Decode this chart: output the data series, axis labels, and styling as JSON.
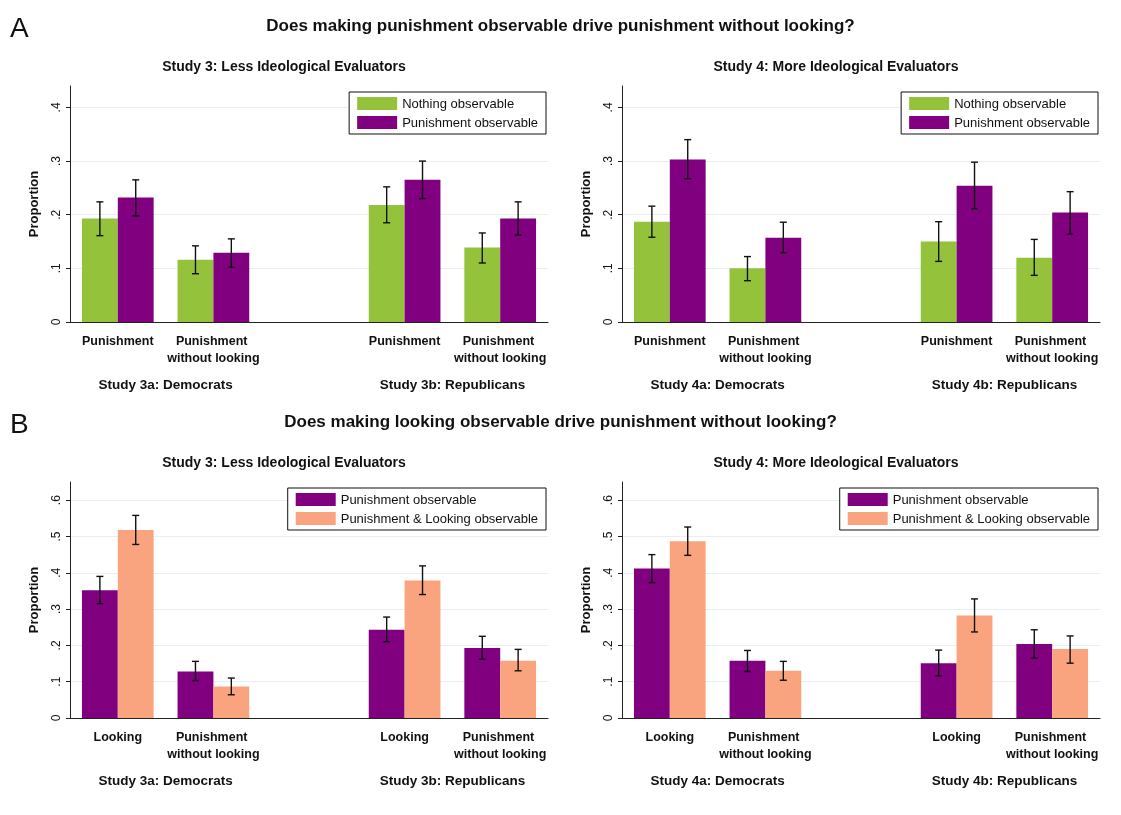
{
  "chart_data": [
    {
      "type": "bar",
      "title": "Study 3: Less Ideological Evaluators",
      "ylabel": "Proportion",
      "categories": [
        "Punishment",
        "Punishment without looking",
        null,
        "Punishment",
        "Punishment without looking"
      ],
      "annotations": [
        "Study 3a: Democrats",
        "Study 3b: Republicans",
        "A",
        "Does making punishment observable drive punishment without looking?"
      ],
      "series": [
        {
          "name": "Nothing observable",
          "color": "#94c23a",
          "values": [
            0.193,
            0.116,
            null,
            0.218,
            0.139
          ],
          "errors": [
            [
              0.161,
              0.224
            ],
            [
              0.09,
              0.142
            ],
            null,
            [
              0.185,
              0.252
            ],
            [
              0.11,
              0.166
            ]
          ]
        },
        {
          "name": "Punishment observable",
          "color": "#800080",
          "values": [
            0.232,
            0.129,
            null,
            0.265,
            0.193
          ],
          "errors": [
            [
              0.198,
              0.265
            ],
            [
              0.102,
              0.155
            ],
            null,
            [
              0.23,
              0.3
            ],
            [
              0.162,
              0.224
            ]
          ]
        }
      ],
      "ylim": [
        0,
        0.44
      ],
      "yticks": [
        {
          "value": 0,
          "label": "0"
        },
        {
          "value": 0.1,
          "label": ".1"
        },
        {
          "value": 0.2,
          "label": ".2"
        },
        {
          "value": 0.3,
          "label": ".3"
        },
        {
          "value": 0.4,
          "label": ".4"
        }
      ],
      "grid": "y",
      "legend": "top right"
    },
    {
      "type": "bar",
      "title": "Study 4: More Ideological Evaluators",
      "ylabel": "Proportion",
      "categories": [
        "Punishment",
        "Punishment without looking",
        null,
        "Punishment",
        "Punishment without looking"
      ],
      "annotations": [
        "Study 4a: Democrats",
        "Study 4b: Republicans"
      ],
      "series": [
        {
          "name": "Nothing observable",
          "color": "#94c23a",
          "values": [
            0.187,
            0.1,
            null,
            0.15,
            0.12
          ],
          "errors": [
            [
              0.158,
              0.216
            ],
            [
              0.077,
              0.122
            ],
            null,
            [
              0.113,
              0.187
            ],
            [
              0.087,
              0.154
            ]
          ]
        },
        {
          "name": "Punishment observable",
          "color": "#800080",
          "values": [
            0.303,
            0.157,
            null,
            0.254,
            0.204
          ],
          "errors": [
            [
              0.267,
              0.34
            ],
            [
              0.129,
              0.186
            ],
            null,
            [
              0.211,
              0.298
            ],
            [
              0.164,
              0.243
            ]
          ]
        }
      ],
      "ylim": [
        0,
        0.44
      ],
      "yticks": [
        {
          "value": 0,
          "label": "0"
        },
        {
          "value": 0.1,
          "label": ".1"
        },
        {
          "value": 0.2,
          "label": ".2"
        },
        {
          "value": 0.3,
          "label": ".3"
        },
        {
          "value": 0.4,
          "label": ".4"
        }
      ],
      "grid": "y",
      "legend": "top right"
    },
    {
      "type": "bar",
      "title": "Study 3: Less Ideological Evaluators",
      "ylabel": "Proportion",
      "categories": [
        "Looking",
        "Punishment without looking",
        null,
        "Looking",
        "Punishment without looking"
      ],
      "annotations": [
        "Study 3a: Democrats",
        "Study 3b: Republicans",
        "B",
        "Does making looking observable drive punishment without looking?"
      ],
      "series": [
        {
          "name": "Punishment observable",
          "color": "#800080",
          "values": [
            0.352,
            0.128,
            null,
            0.243,
            0.193
          ],
          "errors": [
            [
              0.315,
              0.39
            ],
            [
              0.103,
              0.156
            ],
            null,
            [
              0.21,
              0.278
            ],
            [
              0.162,
              0.225
            ]
          ]
        },
        {
          "name": "Punishment & Looking observable",
          "color": "#f9a47e",
          "values": [
            0.518,
            0.087,
            null,
            0.379,
            0.158
          ],
          "errors": [
            [
              0.478,
              0.558
            ],
            [
              0.064,
              0.11
            ],
            null,
            [
              0.34,
              0.419
            ],
            [
              0.13,
              0.189
            ]
          ]
        }
      ],
      "ylim": [
        0,
        0.65
      ],
      "yticks": [
        {
          "value": 0,
          "label": "0"
        },
        {
          "value": 0.1,
          "label": ".1"
        },
        {
          "value": 0.2,
          "label": ".2"
        },
        {
          "value": 0.3,
          "label": ".3"
        },
        {
          "value": 0.4,
          "label": ".4"
        },
        {
          "value": 0.5,
          "label": ".5"
        },
        {
          "value": 0.6,
          "label": ".6"
        }
      ],
      "grid": "y",
      "legend": "top right"
    },
    {
      "type": "bar",
      "title": "Study 4: More Ideological Evaluators",
      "ylabel": "Proportion",
      "categories": [
        "Looking",
        "Punishment without looking",
        null,
        "Looking",
        "Punishment without looking"
      ],
      "annotations": [
        "Study 4a: Democrats",
        "Study 4b: Republicans"
      ],
      "series": [
        {
          "name": "Punishment observable",
          "color": "#800080",
          "values": [
            0.412,
            0.158,
            null,
            0.151,
            0.204
          ],
          "errors": [
            [
              0.373,
              0.45
            ],
            [
              0.128,
              0.186
            ],
            null,
            [
              0.116,
              0.187
            ],
            [
              0.165,
              0.243
            ]
          ]
        },
        {
          "name": "Punishment & Looking observable",
          "color": "#f9a47e",
          "values": [
            0.487,
            0.13,
            null,
            0.282,
            0.19
          ],
          "errors": [
            [
              0.448,
              0.526
            ],
            [
              0.104,
              0.156
            ],
            null,
            [
              0.237,
              0.328
            ],
            [
              0.151,
              0.226
            ]
          ]
        }
      ],
      "ylim": [
        0,
        0.65
      ],
      "yticks": [
        {
          "value": 0,
          "label": "0"
        },
        {
          "value": 0.1,
          "label": ".1"
        },
        {
          "value": 0.2,
          "label": ".2"
        },
        {
          "value": 0.3,
          "label": ".3"
        },
        {
          "value": 0.4,
          "label": ".4"
        },
        {
          "value": 0.5,
          "label": ".5"
        },
        {
          "value": 0.6,
          "label": ".6"
        }
      ],
      "grid": "y",
      "legend": "top right"
    }
  ]
}
